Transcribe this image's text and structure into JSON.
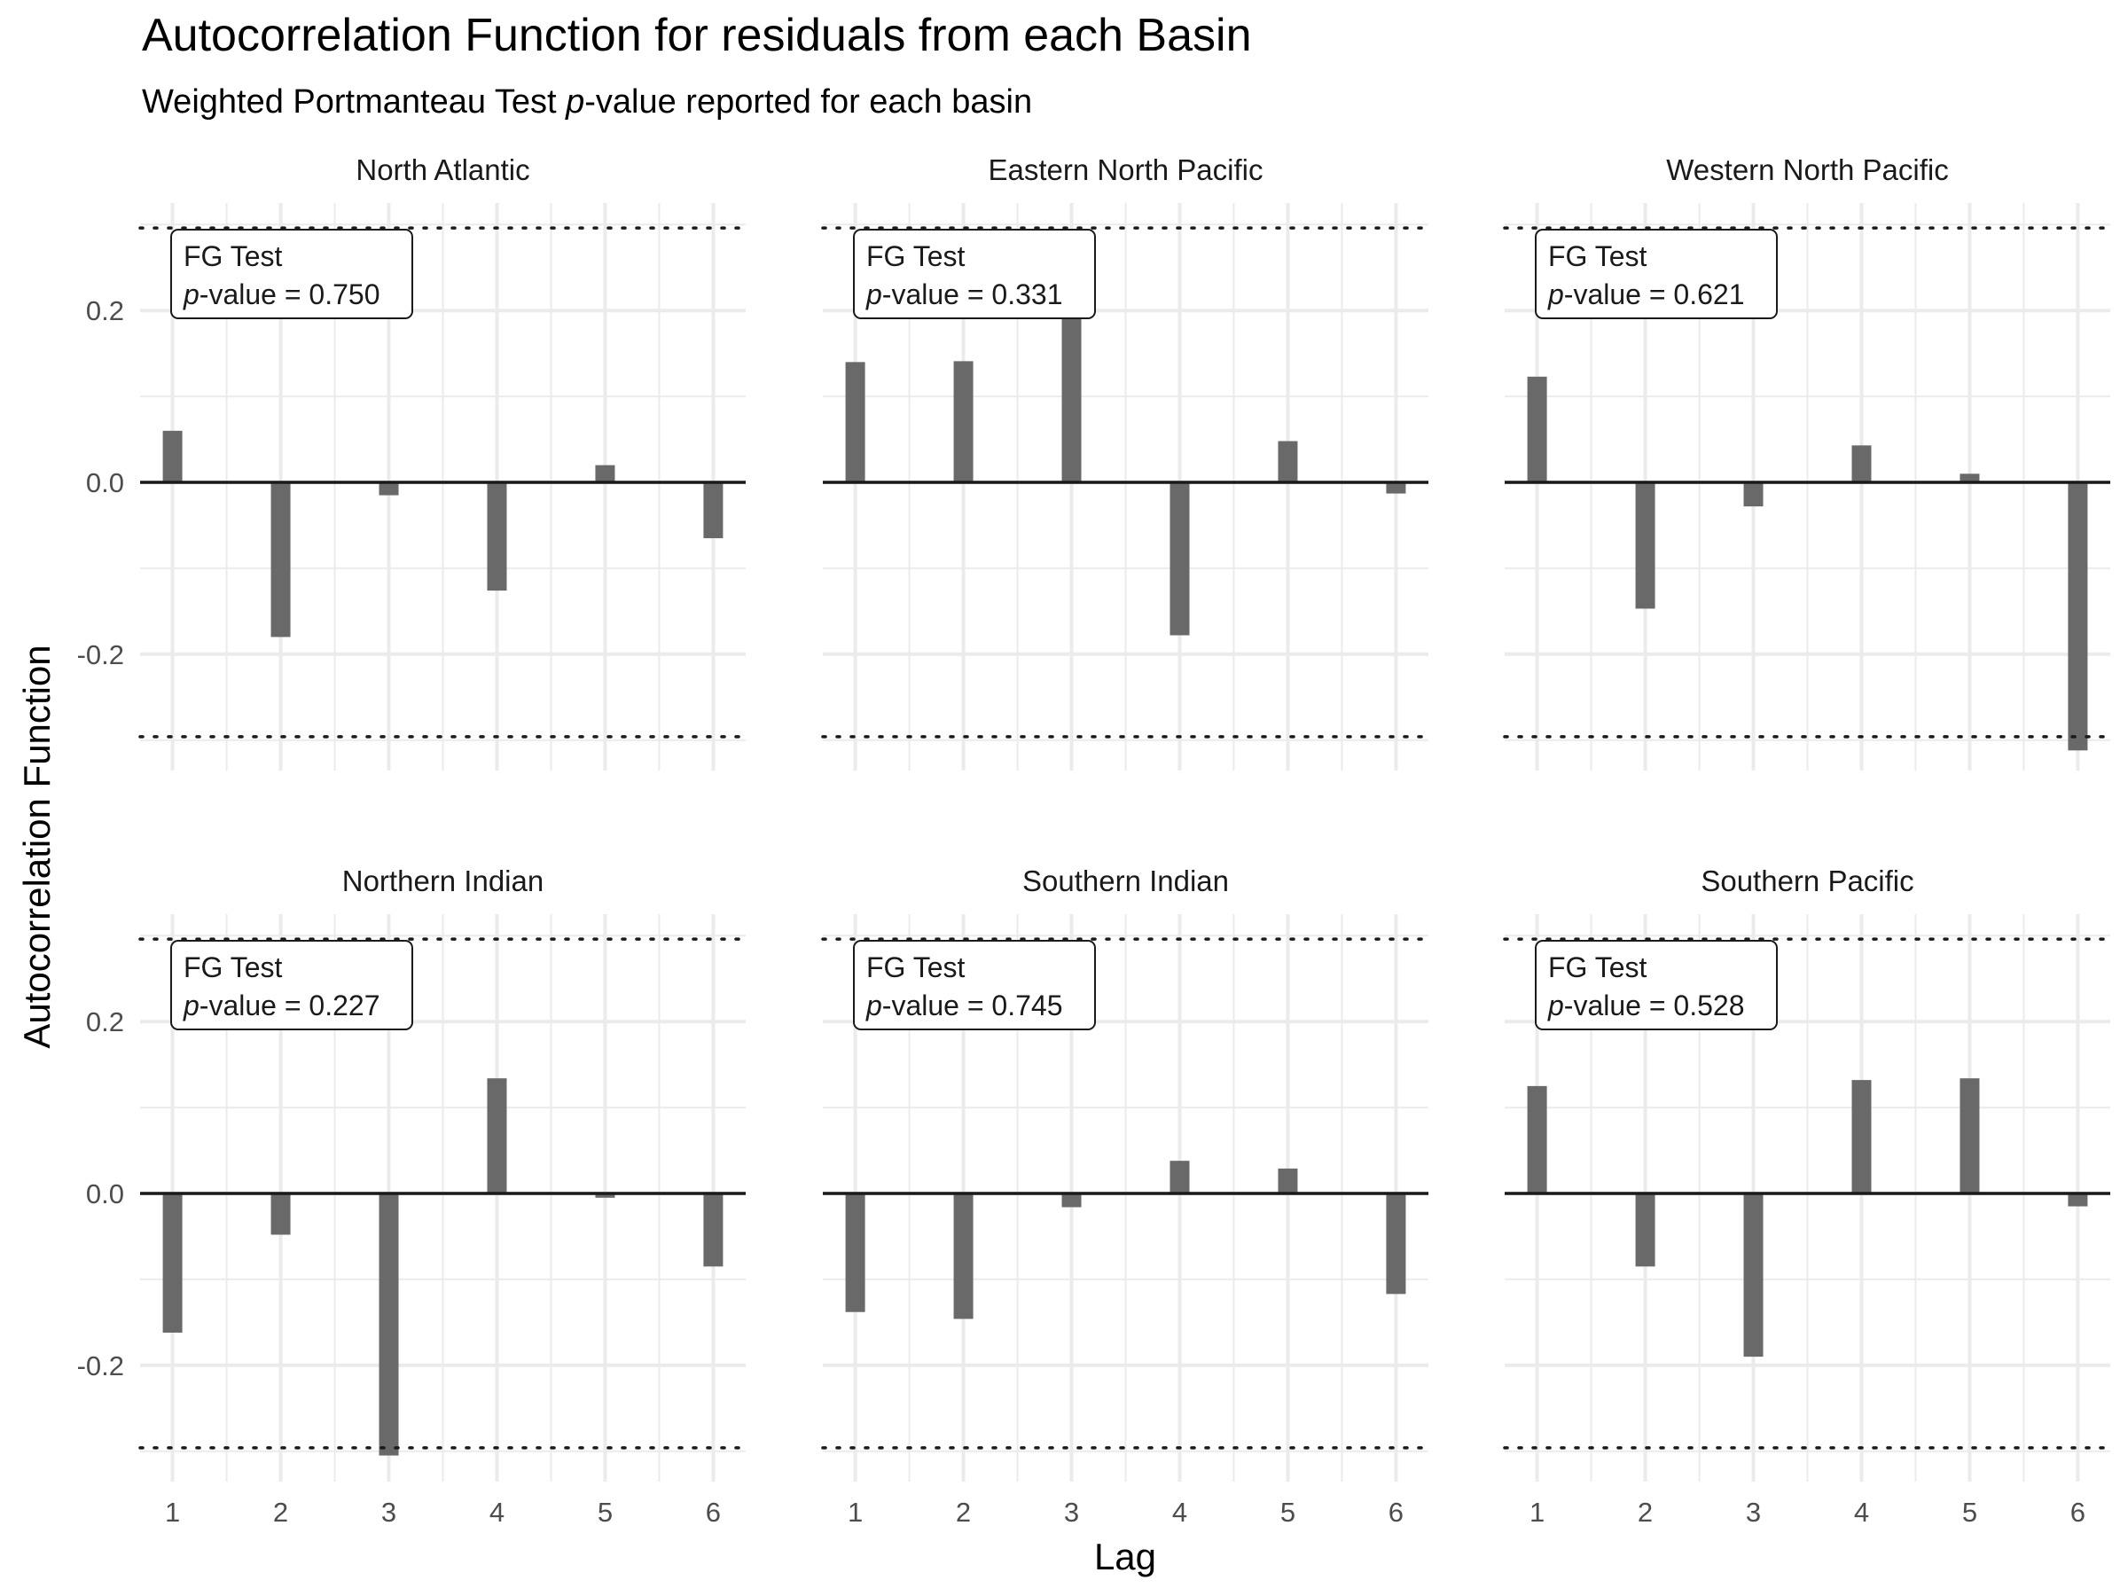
{
  "title": "Autocorrelation Function for residuals from each Basin",
  "subtitle": {
    "before": "Weighted Portmanteau Test ",
    "italic": "p",
    "after": "-value reported for each basin"
  },
  "colors": {
    "bar": "#696969",
    "grid": "#ebebeb",
    "zero_line": "#1a1a1a",
    "bound_line": "#1a1a1a",
    "text": "#000000",
    "tick_text": "#4d4d4d",
    "strip_text": "#1a1a1a"
  },
  "chart_data": {
    "type": "bar",
    "layout": "facet 2 rows x 3 columns, shared axes",
    "xlabel": "Lag",
    "ylabel": "Autocorrelation Function",
    "x": [
      1,
      2,
      3,
      4,
      5,
      6
    ],
    "xticks": [
      "1",
      "2",
      "3",
      "4",
      "5",
      "6"
    ],
    "yticks": [
      -0.2,
      0.0,
      0.2
    ],
    "ytick_labels": [
      "-0.2",
      "0.0",
      "0.2"
    ],
    "ylim": [
      -0.325,
      0.325
    ],
    "xlim": [
      0.7,
      6.3
    ],
    "confidence_bounds": [
      0.296,
      -0.296
    ],
    "grid": true,
    "panels": [
      {
        "name": "North Atlantic",
        "annotation": {
          "line1": "FG Test",
          "p_label": "p",
          "p_text": "-value = 0.750"
        },
        "values": [
          0.06,
          -0.18,
          -0.015,
          -0.126,
          0.02,
          -0.065
        ]
      },
      {
        "name": "Eastern North Pacific",
        "annotation": {
          "line1": "FG Test",
          "p_label": "p",
          "p_text": "-value = 0.331"
        },
        "values": [
          0.14,
          0.141,
          0.215,
          -0.178,
          0.048,
          -0.013
        ]
      },
      {
        "name": "Western North Pacific",
        "annotation": {
          "line1": "FG Test",
          "p_label": "p",
          "p_text": "-value = 0.621"
        },
        "values": [
          0.123,
          -0.147,
          -0.028,
          0.043,
          0.01,
          -0.312
        ]
      },
      {
        "name": "Northern Indian",
        "annotation": {
          "line1": "FG Test",
          "p_label": "p",
          "p_text": "-value = 0.227"
        },
        "values": [
          -0.162,
          -0.048,
          -0.305,
          0.134,
          -0.005,
          -0.085
        ]
      },
      {
        "name": "Southern Indian",
        "annotation": {
          "line1": "FG Test",
          "p_label": "p",
          "p_text": "-value = 0.745"
        },
        "values": [
          -0.138,
          -0.146,
          -0.016,
          0.038,
          0.029,
          -0.117
        ]
      },
      {
        "name": "Southern Pacific",
        "annotation": {
          "line1": "FG Test",
          "p_label": "p",
          "p_text": "-value = 0.528"
        },
        "values": [
          0.125,
          -0.085,
          -0.19,
          0.132,
          0.134,
          -0.015
        ]
      }
    ]
  }
}
